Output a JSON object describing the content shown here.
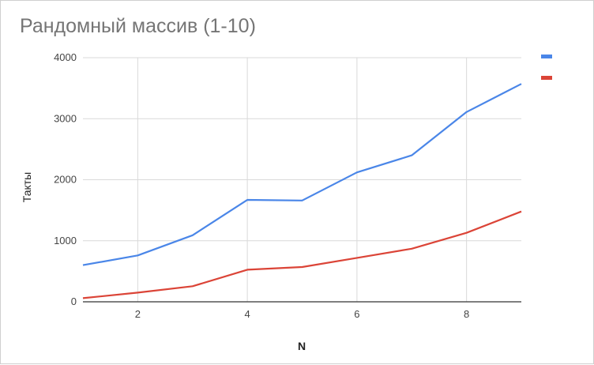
{
  "chart_data": {
    "type": "line",
    "title": "Рандомный массив (1-10)",
    "xlabel": "N",
    "ylabel": "Такты",
    "x": [
      1,
      2,
      3,
      4,
      5,
      6,
      7,
      8,
      9
    ],
    "xticks": [
      "2",
      "4",
      "6",
      "8"
    ],
    "yticks": [
      "0",
      "1000",
      "2000",
      "3000",
      "4000"
    ],
    "xlim": [
      1,
      9
    ],
    "ylim": [
      0,
      4000
    ],
    "grid": true,
    "legend": "top-right",
    "series": [
      {
        "name": "",
        "color": "#4a86e8",
        "values": [
          600,
          760,
          1090,
          1670,
          1660,
          2120,
          2400,
          3110,
          3570
        ]
      },
      {
        "name": "",
        "color": "#db4437",
        "values": [
          60,
          150,
          255,
          525,
          570,
          720,
          870,
          1130,
          1480
        ]
      }
    ]
  }
}
